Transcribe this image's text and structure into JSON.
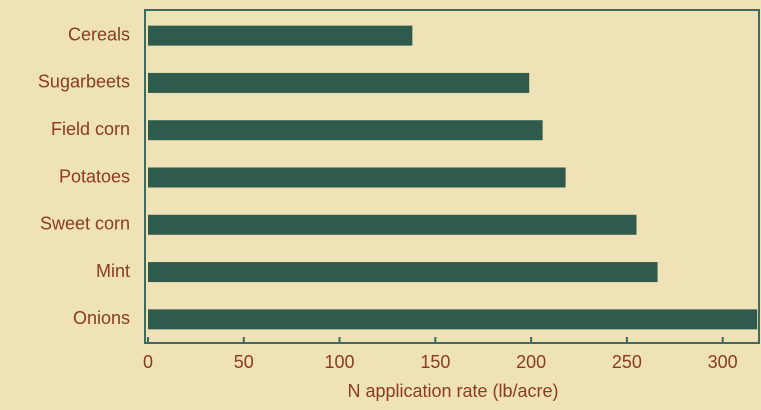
{
  "chart_data": {
    "type": "bar",
    "orientation": "horizontal",
    "x_label": "N application rate (lb/acre)",
    "categories": [
      "Cereals",
      "Sugarbeets",
      "Field corn",
      "Potatoes",
      "Sweet corn",
      "Mint",
      "Onions"
    ],
    "values": [
      138,
      199,
      206,
      218,
      255,
      266,
      318
    ],
    "color": "#2f5a4e",
    "xlim": [
      0,
      320
    ],
    "xticks": [
      0,
      50,
      100,
      150,
      200,
      250,
      300
    ]
  }
}
